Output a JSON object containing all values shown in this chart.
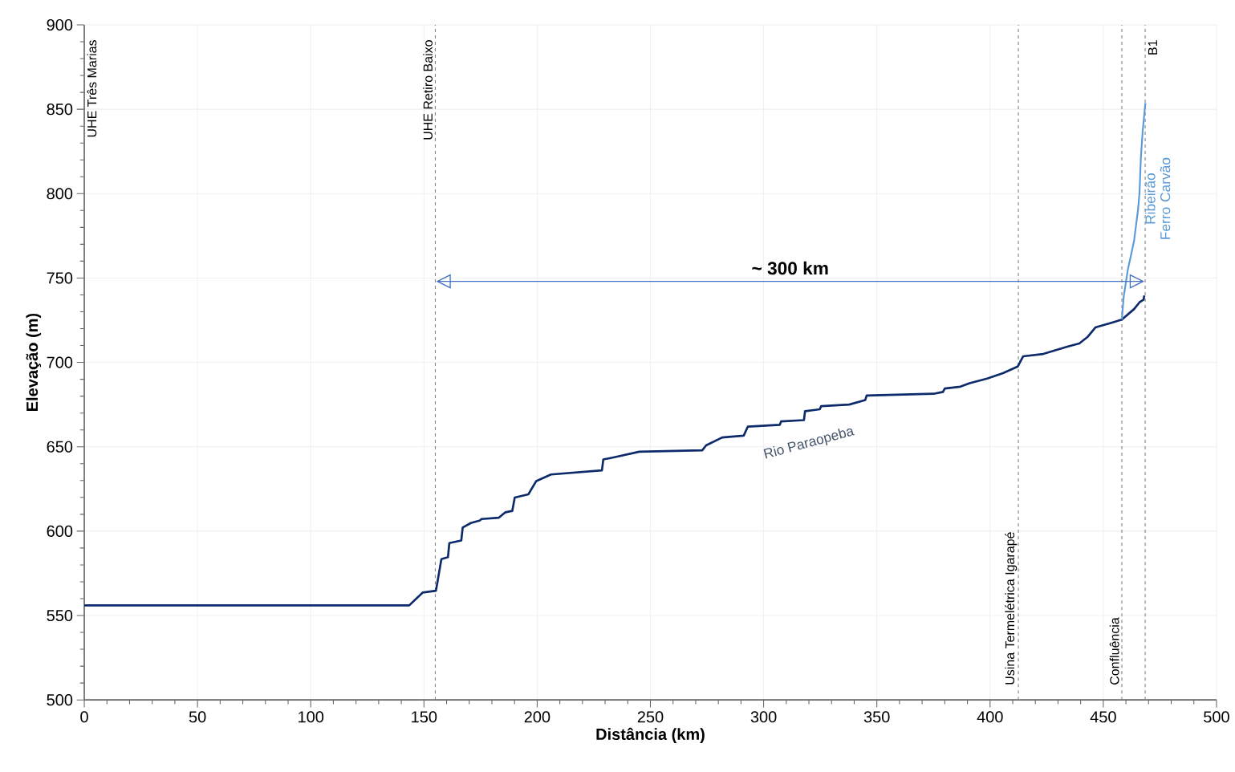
{
  "chart_data": {
    "type": "line",
    "xlabel": "Distância (km)",
    "ylabel": "Elevação (m)",
    "xlim": [
      0,
      500
    ],
    "ylim": [
      500,
      900
    ],
    "xticks": [
      0,
      50,
      100,
      150,
      200,
      250,
      300,
      350,
      400,
      450,
      500
    ],
    "yticks": [
      500,
      550,
      600,
      650,
      700,
      750,
      800,
      850,
      900
    ],
    "grid": true,
    "series": [
      {
        "name": "Rio Paraopeba",
        "color": "#0d2a6b",
        "x": [
          0,
          143.5,
          149.4,
          155.3,
          157.7,
          160.6,
          161.2,
          166.5,
          167.1,
          170.7,
          174.8,
          175.4,
          183.1,
          186.0,
          189.0,
          190.1,
          196.1,
          199.6,
          206.1,
          228.6,
          229.2,
          233.3,
          245.1,
          272.9,
          274.6,
          281.7,
          291.2,
          293.0,
          307.1,
          307.7,
          317.8,
          318.3,
          324.8,
          325.4,
          337.8,
          344.9,
          345.5,
          375.0,
          379.2,
          380.0,
          386.9,
          391.0,
          398.7,
          405.7,
          412.2,
          414.6,
          423.5,
          434.1,
          439.4,
          443.0,
          446.5,
          453.6,
          458.2,
          463.6,
          466.0,
          467.8,
          468.1
        ],
        "values": [
          556,
          556,
          563.6,
          564.7,
          583.4,
          584.6,
          592.9,
          594.5,
          602.1,
          604.8,
          606.4,
          607.2,
          608.0,
          611.2,
          612.0,
          619.9,
          621.8,
          629.7,
          633.6,
          636.0,
          642.5,
          643.6,
          647.1,
          647.9,
          650.8,
          655.5,
          656.6,
          661.9,
          663.0,
          665.0,
          665.8,
          671.1,
          672.2,
          674.1,
          675.0,
          677.7,
          680.4,
          681.4,
          682.5,
          684.5,
          685.6,
          687.7,
          690.4,
          693.6,
          697.5,
          703.6,
          705.0,
          709.3,
          711.2,
          715.0,
          720.7,
          723.5,
          725.4,
          731.6,
          735.6,
          737.2,
          739.6
        ]
      },
      {
        "name": "Ribeirão Ferro Carvão",
        "color": "#5b9bd5",
        "x": [
          458.2,
          459.0,
          460.8,
          463.6,
          465.4,
          466.0,
          466.6,
          467.4,
          468.6
        ],
        "values": [
          725.4,
          738.8,
          754.6,
          772.1,
          791.1,
          800.6,
          821.2,
          837.1,
          853.7
        ]
      }
    ],
    "ref_lines": [
      {
        "axis": "x",
        "value": 0,
        "label": "UHE Três Marias",
        "color": "#7f7f7f",
        "line_style": "dashed"
      },
      {
        "axis": "x",
        "value": 155,
        "label": "UHE Retiro Baixo",
        "color": "#7f7f7f",
        "line_style": "dashed"
      },
      {
        "axis": "x",
        "value": 412.5,
        "label": "Usina Termelétrica Igarapé",
        "color": "#7f7f7f",
        "line_style": "dashed"
      },
      {
        "axis": "x",
        "value": 458.2,
        "label": "Confluência",
        "color": "#7f7f7f",
        "line_style": "dashed"
      },
      {
        "axis": "x",
        "value": 468.5,
        "label": "B1",
        "color": "#7f7f7f",
        "line_style": "dashed"
      }
    ],
    "annotations": [
      "~ 300 km"
    ]
  }
}
